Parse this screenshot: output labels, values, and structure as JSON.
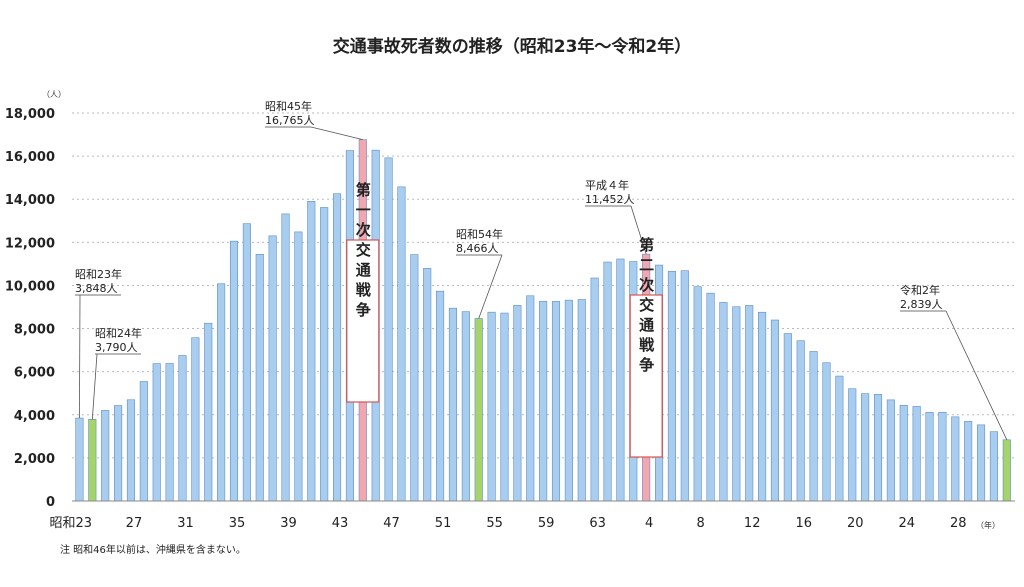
{
  "chart_data": {
    "type": "bar",
    "title": "交通事故死者数の推移（昭和23年～令和2年）",
    "ylabel": "（人）",
    "xlabel": "（年）",
    "ylim": [
      0,
      18000
    ],
    "yticks": [
      "0",
      "2,000",
      "4,000",
      "6,000",
      "8,000",
      "10,000",
      "12,000",
      "14,000",
      "16,000",
      "18,000"
    ],
    "grid": true,
    "xtick_labels": [
      "昭和23",
      "27",
      "31",
      "35",
      "39",
      "43",
      "47",
      "51",
      "55",
      "59",
      "63",
      "4",
      "8",
      "12",
      "16",
      "20",
      "24",
      "28"
    ],
    "categories": [
      "S23",
      "S24",
      "S25",
      "S26",
      "S27",
      "S28",
      "S29",
      "S30",
      "S31",
      "S32",
      "S33",
      "S34",
      "S35",
      "S36",
      "S37",
      "S38",
      "S39",
      "S40",
      "S41",
      "S42",
      "S43",
      "S44",
      "S45",
      "S46",
      "S47",
      "S48",
      "S49",
      "S50",
      "S51",
      "S52",
      "S53",
      "S54",
      "S55",
      "S56",
      "S57",
      "S58",
      "S59",
      "S60",
      "S61",
      "S62",
      "S63",
      "H1",
      "H2",
      "H3",
      "H4",
      "H5",
      "H6",
      "H7",
      "H8",
      "H9",
      "H10",
      "H11",
      "H12",
      "H13",
      "H14",
      "H15",
      "H16",
      "H17",
      "H18",
      "H19",
      "H20",
      "H21",
      "H22",
      "H23",
      "H24",
      "H25",
      "H26",
      "H27",
      "H28",
      "H29",
      "H30",
      "R1",
      "R2"
    ],
    "values": [
      3848,
      3790,
      4202,
      4429,
      4696,
      5544,
      6374,
      6379,
      6751,
      7575,
      8248,
      10079,
      12055,
      12865,
      11445,
      12301,
      13318,
      12484,
      13904,
      13618,
      14256,
      16257,
      16765,
      16278,
      15918,
      14574,
      11432,
      10792,
      9734,
      8945,
      8783,
      8466,
      8760,
      8719,
      9073,
      9520,
      9262,
      9261,
      9317,
      9347,
      10344,
      11086,
      11227,
      11109,
      11452,
      10945,
      10653,
      10684,
      9943,
      9642,
      9214,
      9012,
      9073,
      8757,
      8396,
      7768,
      7436,
      6937,
      6415,
      5796,
      5209,
      4979,
      4948,
      4691,
      4438,
      4388,
      4113,
      4117,
      3904,
      3694,
      3532,
      3215,
      2839
    ],
    "highlight_green": [
      1,
      31,
      72
    ],
    "highlight_pink": [
      22,
      44
    ],
    "colors": {
      "bar": "#a9cdef",
      "bar_edge": "#5b8fc9",
      "green": "#a5d46a",
      "pink": "#f2a6ae",
      "box_edge": "#d9534f"
    },
    "annotations": [
      {
        "index": 0,
        "line1": "昭和23年",
        "line2": "3,848人"
      },
      {
        "index": 1,
        "line1": "昭和24年",
        "line2": "3,790人"
      },
      {
        "index": 22,
        "line1": "昭和45年",
        "line2": "16,765人"
      },
      {
        "index": 31,
        "line1": "昭和54年",
        "line2": "8,466人"
      },
      {
        "index": 44,
        "line1": "平成４年",
        "line2": "11,452人"
      },
      {
        "index": 72,
        "line1": "令和2年",
        "line2": "2,839人"
      }
    ],
    "period_boxes": [
      {
        "index": 22,
        "label": "第一次交通戦争"
      },
      {
        "index": 44,
        "label": "第二次交通戦争"
      }
    ],
    "note": "注 昭和46年以前は、沖縄県を含まない。"
  }
}
